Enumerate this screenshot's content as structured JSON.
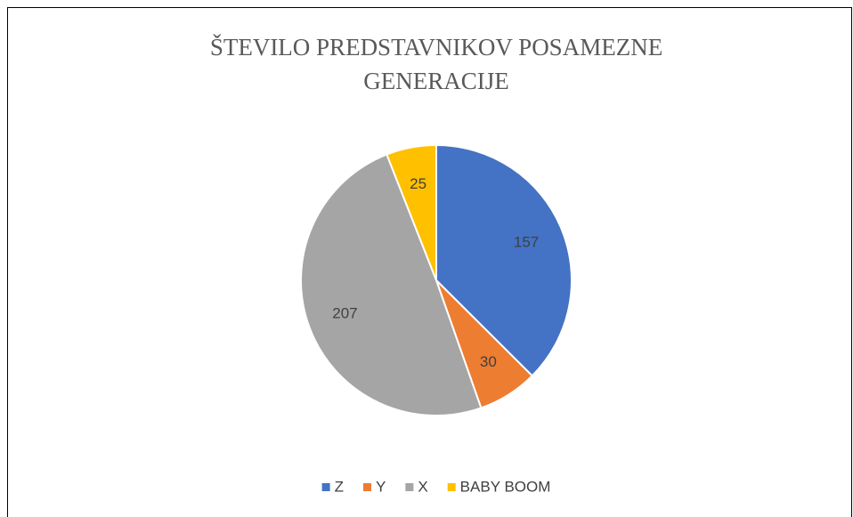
{
  "chart_data": {
    "type": "pie",
    "title": "ŠTEVILO PREDSTAVNIKOV POSAMEZNE GENERACIJE",
    "categories": [
      "Z",
      "Y",
      "X",
      "BABY BOOM"
    ],
    "values": [
      157,
      30,
      207,
      25
    ],
    "colors": [
      "#4472c4",
      "#ed7d31",
      "#a5a5a5",
      "#ffc000"
    ],
    "legend": "bottom"
  }
}
